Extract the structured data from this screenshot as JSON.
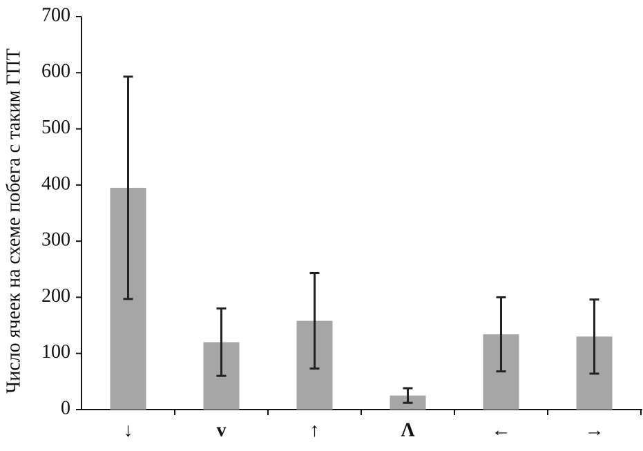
{
  "chart_data": {
    "type": "bar",
    "y_label": "Число ячеек на схеме побега с таким ГПТ",
    "categories": [
      "↓",
      "v",
      "↑",
      "Λ",
      "←",
      "→"
    ],
    "values": [
      395,
      120,
      158,
      25,
      134,
      130
    ],
    "errors": [
      198,
      60,
      85,
      13,
      66,
      66
    ],
    "color": "#a6a6a6",
    "error_color": "#222222",
    "ylim": [
      0,
      700
    ],
    "yticks": [
      0,
      100,
      200,
      300,
      400,
      500,
      600,
      700
    ],
    "grid": false
  }
}
